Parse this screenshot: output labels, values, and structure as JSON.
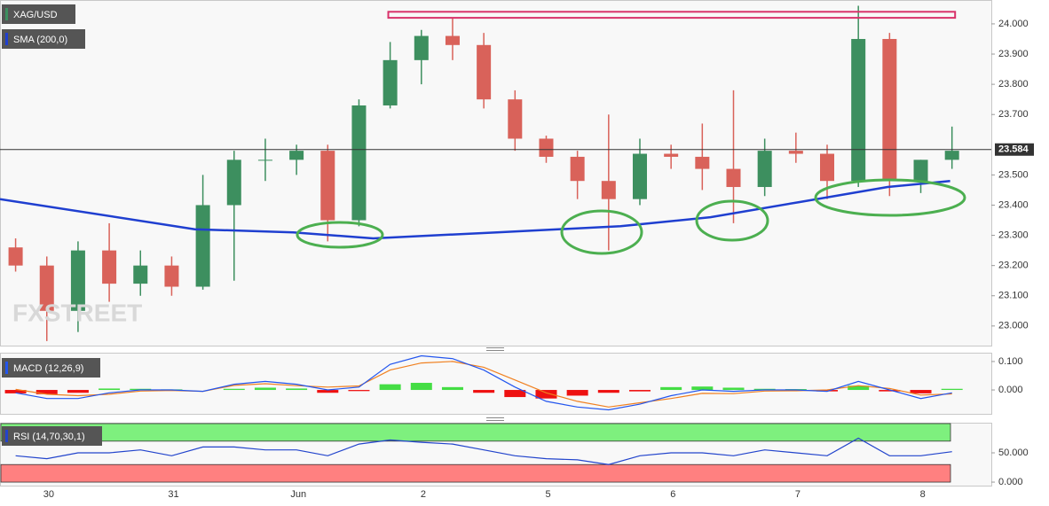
{
  "chart_data": [
    {
      "type": "candlestick",
      "title": "XAG/USD",
      "watermark": "FXSTREET",
      "x": [
        -0.265,
        -0.015,
        0.235,
        0.485,
        0.735,
        0.985,
        1.235,
        1.485,
        1.735,
        1.985,
        2.235,
        2.485,
        2.735,
        2.985,
        3.235,
        3.485,
        3.735,
        3.985,
        4.235,
        4.485,
        4.735,
        4.985,
        5.235,
        5.485,
        5.735,
        5.985,
        6.235,
        6.485,
        6.735,
        6.985,
        7.235
      ],
      "open": [
        23.26,
        23.2,
        23.05,
        23.25,
        23.14,
        23.2,
        23.13,
        23.4,
        23.55,
        23.55,
        23.58,
        23.35,
        23.73,
        23.88,
        23.96,
        23.93,
        23.75,
        23.62,
        23.56,
        23.48,
        23.42,
        23.57,
        23.56,
        23.52,
        23.46,
        23.58,
        23.57,
        23.48,
        23.95,
        23.48,
        23.55
      ],
      "high": [
        23.29,
        23.23,
        23.28,
        23.34,
        23.25,
        23.23,
        23.5,
        23.58,
        23.62,
        23.6,
        23.6,
        23.75,
        23.94,
        23.98,
        24.02,
        23.97,
        23.78,
        23.63,
        23.58,
        23.7,
        23.62,
        23.6,
        23.67,
        23.78,
        23.62,
        23.64,
        23.6,
        24.06,
        23.97,
        23.55,
        23.66
      ],
      "low": [
        23.18,
        22.95,
        22.98,
        23.08,
        23.1,
        23.1,
        23.12,
        23.15,
        23.48,
        23.5,
        23.28,
        23.33,
        23.72,
        23.8,
        23.88,
        23.72,
        23.58,
        23.54,
        23.42,
        23.25,
        23.4,
        23.52,
        23.45,
        23.34,
        23.43,
        23.54,
        23.42,
        23.46,
        23.43,
        23.44,
        23.52
      ],
      "close": [
        23.2,
        23.05,
        23.25,
        23.14,
        23.2,
        23.13,
        23.4,
        23.55,
        23.55,
        23.58,
        23.35,
        23.73,
        23.88,
        23.96,
        23.93,
        23.75,
        23.62,
        23.56,
        23.48,
        23.42,
        23.57,
        23.56,
        23.52,
        23.46,
        23.58,
        23.57,
        23.48,
        23.95,
        23.48,
        23.55,
        23.58
      ],
      "up_color": "#3d8f5f",
      "down_color": "#d9625a",
      "sma": {
        "name": "SMA (200,0)",
        "color": "#1f3fd0",
        "x": [
          -0.39,
          1.17,
          1.96,
          2.6,
          3.59,
          4.58,
          5.3,
          6.01,
          6.72,
          7.22
        ],
        "values": [
          23.42,
          23.32,
          23.31,
          23.29,
          23.31,
          23.33,
          23.36,
          23.41,
          23.46,
          23.48
        ]
      },
      "last_price": 23.584,
      "resistance_zone": {
        "x": [
          2.72,
          7.26
        ],
        "y": [
          24.02,
          24.04
        ],
        "color": "#d8326a"
      },
      "xlim": [
        -0.39,
        7.55
      ],
      "xticks": [
        {
          "value": 0,
          "label": "30"
        },
        {
          "value": 1,
          "label": "31"
        },
        {
          "value": 2,
          "label": "Jun"
        },
        {
          "value": 3,
          "label": "2"
        },
        {
          "value": 4,
          "label": "5"
        },
        {
          "value": 5,
          "label": "6"
        },
        {
          "value": 6,
          "label": "7"
        },
        {
          "value": 7,
          "label": "8"
        }
      ],
      "ylim": [
        22.935,
        24.079
      ],
      "yticks": [
        {
          "value": 23,
          "label": "23.000"
        },
        {
          "value": 23.1,
          "label": "23.100"
        },
        {
          "value": 23.2,
          "label": "23.200"
        },
        {
          "value": 23.3,
          "label": "23.300"
        },
        {
          "value": 23.4,
          "label": "23.400"
        },
        {
          "value": 23.5,
          "label": "23.500"
        },
        {
          "value": 23.7,
          "label": "23.700"
        },
        {
          "value": 23.8,
          "label": "23.800"
        },
        {
          "value": 23.9,
          "label": "23.900"
        },
        {
          "value": 24,
          "label": "24.000"
        }
      ]
    },
    {
      "type": "macd",
      "title": "MACD (12,26,9)",
      "histogram": [
        -0.012,
        -0.015,
        -0.01,
        0.005,
        0.004,
        0.002,
        0.0,
        0.004,
        0.008,
        0.005,
        -0.01,
        -0.004,
        0.02,
        0.025,
        0.01,
        -0.01,
        -0.025,
        -0.03,
        -0.02,
        -0.01,
        -0.005,
        0.01,
        0.012,
        0.008,
        0.004,
        0.003,
        -0.005,
        0.015,
        -0.005,
        -0.012,
        0.004
      ],
      "macd": [
        -0.01,
        -0.03,
        -0.03,
        -0.01,
        0.0,
        0.0,
        -0.005,
        0.02,
        0.03,
        0.02,
        0.0,
        0.01,
        0.09,
        0.12,
        0.11,
        0.07,
        0.01,
        -0.04,
        -0.06,
        -0.07,
        -0.05,
        -0.02,
        0.0,
        -0.005,
        0.0,
        0.0,
        -0.005,
        0.03,
        0.0,
        -0.03,
        -0.01
      ],
      "signal": [
        0.002,
        -0.015,
        -0.02,
        -0.015,
        -0.004,
        -0.002,
        -0.005,
        0.016,
        0.022,
        0.015,
        0.01,
        0.014,
        0.07,
        0.095,
        0.1,
        0.08,
        0.035,
        -0.01,
        -0.04,
        -0.06,
        -0.045,
        -0.03,
        -0.012,
        -0.013,
        -0.004,
        -0.003,
        0.0,
        0.015,
        0.005,
        -0.018,
        -0.014
      ],
      "colors": {
        "macd": "#2255ee",
        "signal": "#f08020",
        "up": "#44dd44",
        "down": "#ee1111"
      },
      "ylim": [
        -0.084,
        0.131
      ],
      "yticks": [
        {
          "value": 0,
          "label": "0.000"
        },
        {
          "value": 0.1,
          "label": "0.100"
        }
      ]
    },
    {
      "type": "line",
      "title": "RSI (14,70,30,1)",
      "values": [
        45,
        40,
        50,
        50,
        55,
        45,
        60,
        60,
        55,
        55,
        45,
        65,
        72,
        68,
        65,
        55,
        45,
        40,
        38,
        30,
        45,
        50,
        50,
        45,
        55,
        50,
        45,
        75,
        45,
        45,
        52
      ],
      "color": "#2244cc",
      "bands": [
        {
          "from": 70,
          "to": 100,
          "color": "#7ef07e"
        },
        {
          "from": 0,
          "to": 30,
          "color": "#ff8080"
        }
      ],
      "ylim": [
        -6,
        101.5
      ],
      "yticks": [
        {
          "value": 0,
          "label": "0.000"
        },
        {
          "value": 50,
          "label": "50.000"
        }
      ]
    }
  ]
}
